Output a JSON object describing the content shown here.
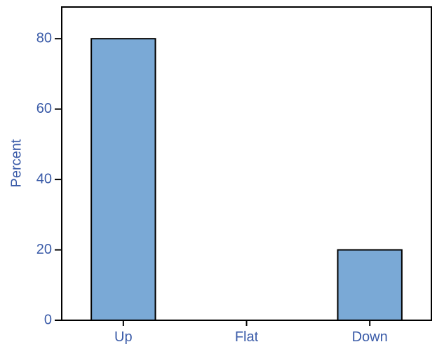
{
  "chart_data": {
    "type": "bar",
    "categories": [
      "Up",
      "Flat",
      "Down"
    ],
    "values": [
      80,
      0,
      20
    ],
    "title": "",
    "xlabel": "",
    "ylabel": "Percent",
    "ylim": [
      0,
      89
    ],
    "yticks": [
      0,
      20,
      40,
      60,
      80
    ],
    "grid": false,
    "legend": "none",
    "bar_color": "#7aa9d6",
    "bar_edge_color": "#000000",
    "text_color": "#3a5ba8"
  }
}
